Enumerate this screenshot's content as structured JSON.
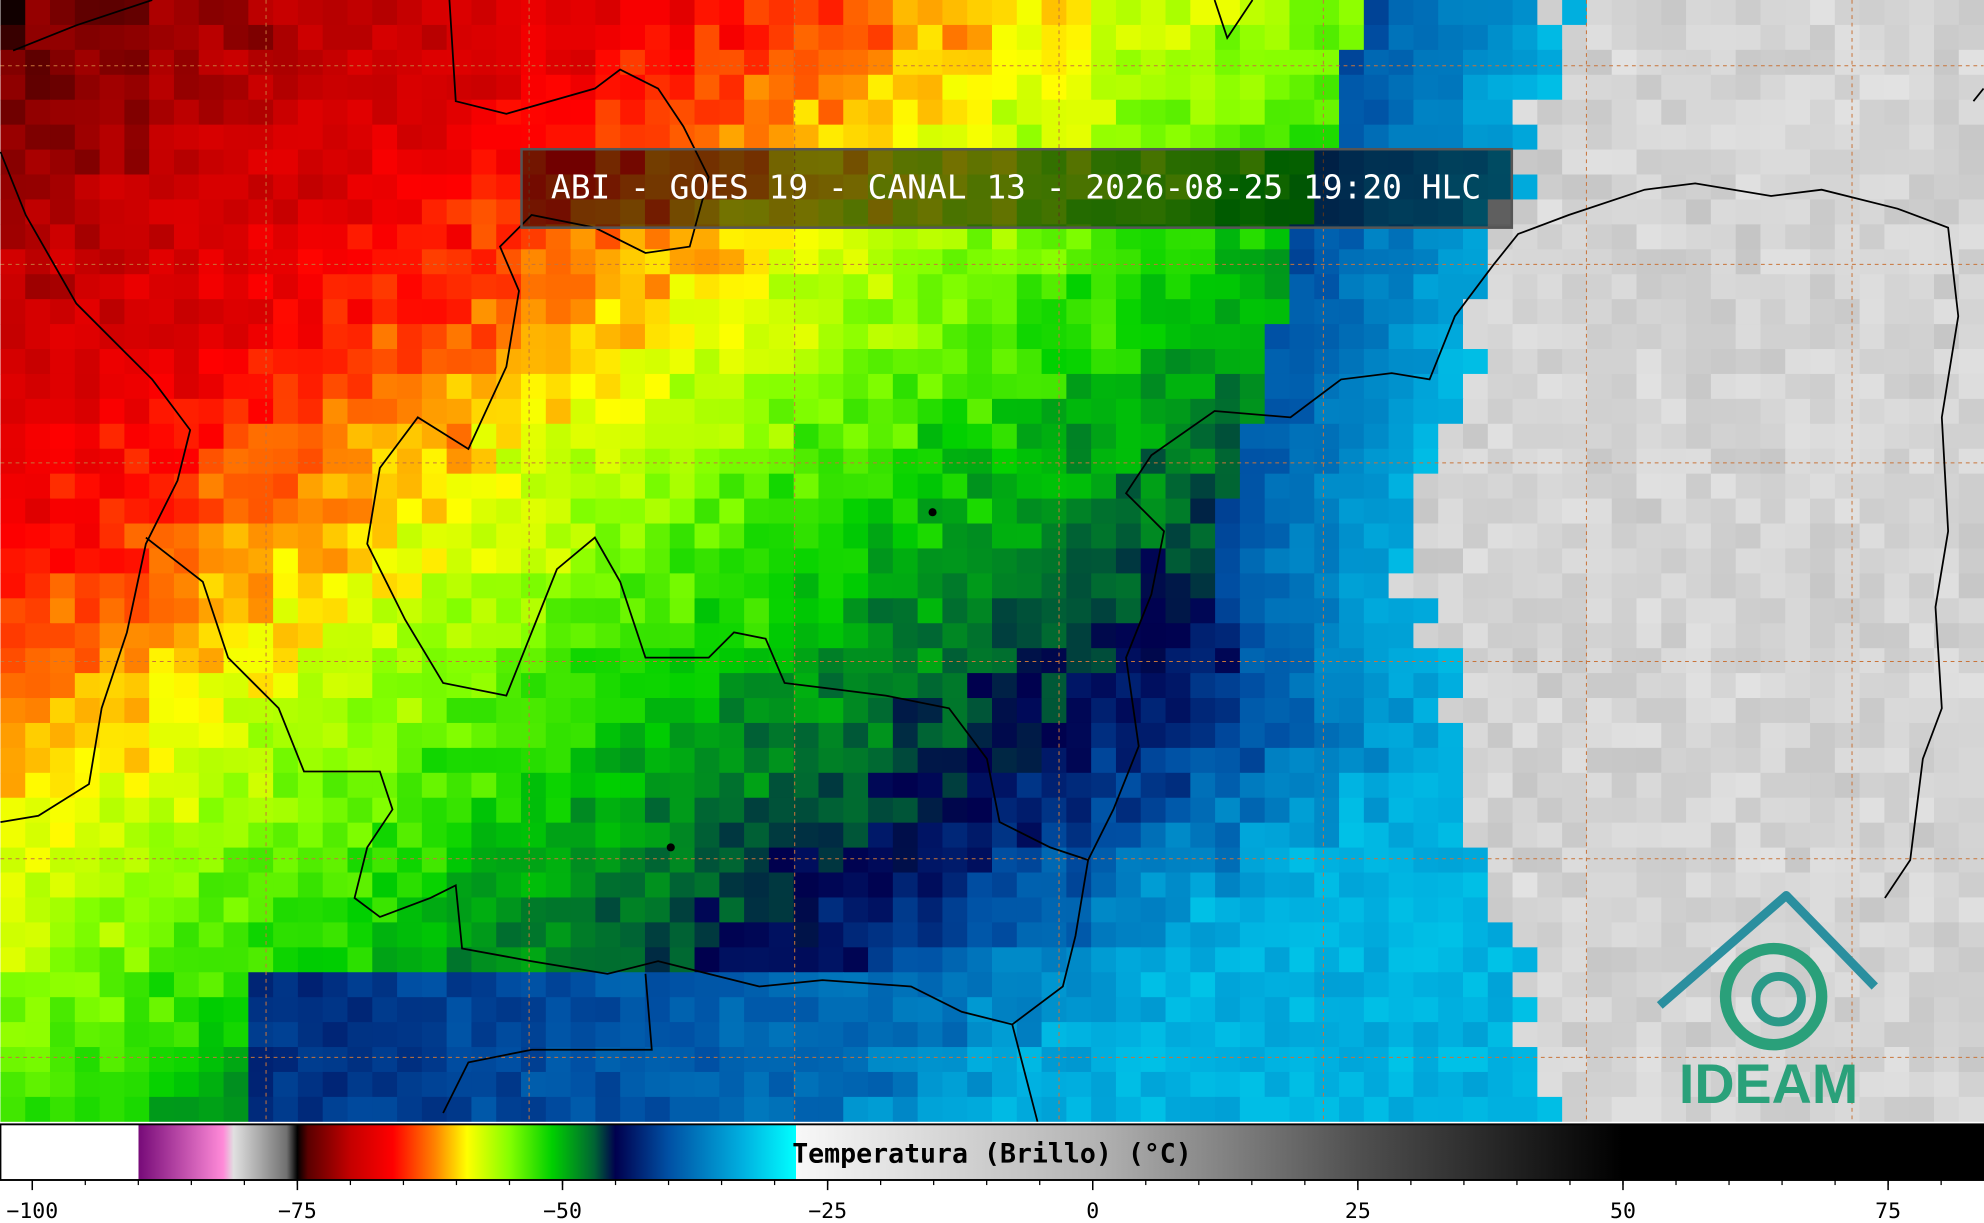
{
  "header": {
    "title": "ABI - GOES 19 - CANAL 13 - 2026-08-25 19:20 HLC"
  },
  "logo": {
    "text": "IDEAM"
  },
  "chart_data": {
    "type": "colorbar",
    "title": "Temperatura (Brillo) (°C)",
    "xlim": [
      -103,
      84
    ],
    "xticks": [
      {
        "value": -100,
        "label": "−100"
      },
      {
        "value": -75,
        "label": "−75"
      },
      {
        "value": -50,
        "label": "−50"
      },
      {
        "value": -25,
        "label": "−25"
      },
      0,
      25,
      50,
      75
    ],
    "xminor_ticks": [
      -100,
      -95,
      -90,
      -85,
      -80,
      -75,
      -70,
      -65,
      -60,
      -55,
      -50,
      -45,
      -40,
      -35,
      -30,
      -25,
      -20,
      -15,
      -10,
      -5,
      0,
      5,
      10,
      15,
      20,
      25,
      30,
      35,
      40,
      45,
      50,
      55,
      60,
      65,
      70,
      75,
      80
    ],
    "colormap": [
      {
        "value": -103,
        "color": "#ffffff"
      },
      {
        "value": -90,
        "color": "#ffffff"
      },
      {
        "value": -90,
        "color": "#760a78"
      },
      {
        "value": -82,
        "color": "#ff8ad8"
      },
      {
        "value": -81,
        "color": "#e0e0e0"
      },
      {
        "value": -76,
        "color": "#707070"
      },
      {
        "value": -75,
        "color": "#000000"
      },
      {
        "value": -74,
        "color": "#5a0000"
      },
      {
        "value": -70,
        "color": "#c40000"
      },
      {
        "value": -66,
        "color": "#ff0000"
      },
      {
        "value": -62,
        "color": "#ff8400"
      },
      {
        "value": -59,
        "color": "#ffff00"
      },
      {
        "value": -55,
        "color": "#84ff00"
      },
      {
        "value": -51,
        "color": "#00d000"
      },
      {
        "value": -47,
        "color": "#006434"
      },
      {
        "value": -45,
        "color": "#00004e"
      },
      {
        "value": -40,
        "color": "#0050a4"
      },
      {
        "value": -33,
        "color": "#00b0e0"
      },
      {
        "value": -28,
        "color": "#00ffff"
      },
      {
        "value": -28,
        "color": "#f8f8f8"
      },
      {
        "value": 0,
        "color": "#b4b4b4"
      },
      {
        "value": 25,
        "color": "#505050"
      },
      {
        "value": 50,
        "color": "#000000"
      },
      {
        "value": 84,
        "color": "#000000"
      }
    ]
  }
}
